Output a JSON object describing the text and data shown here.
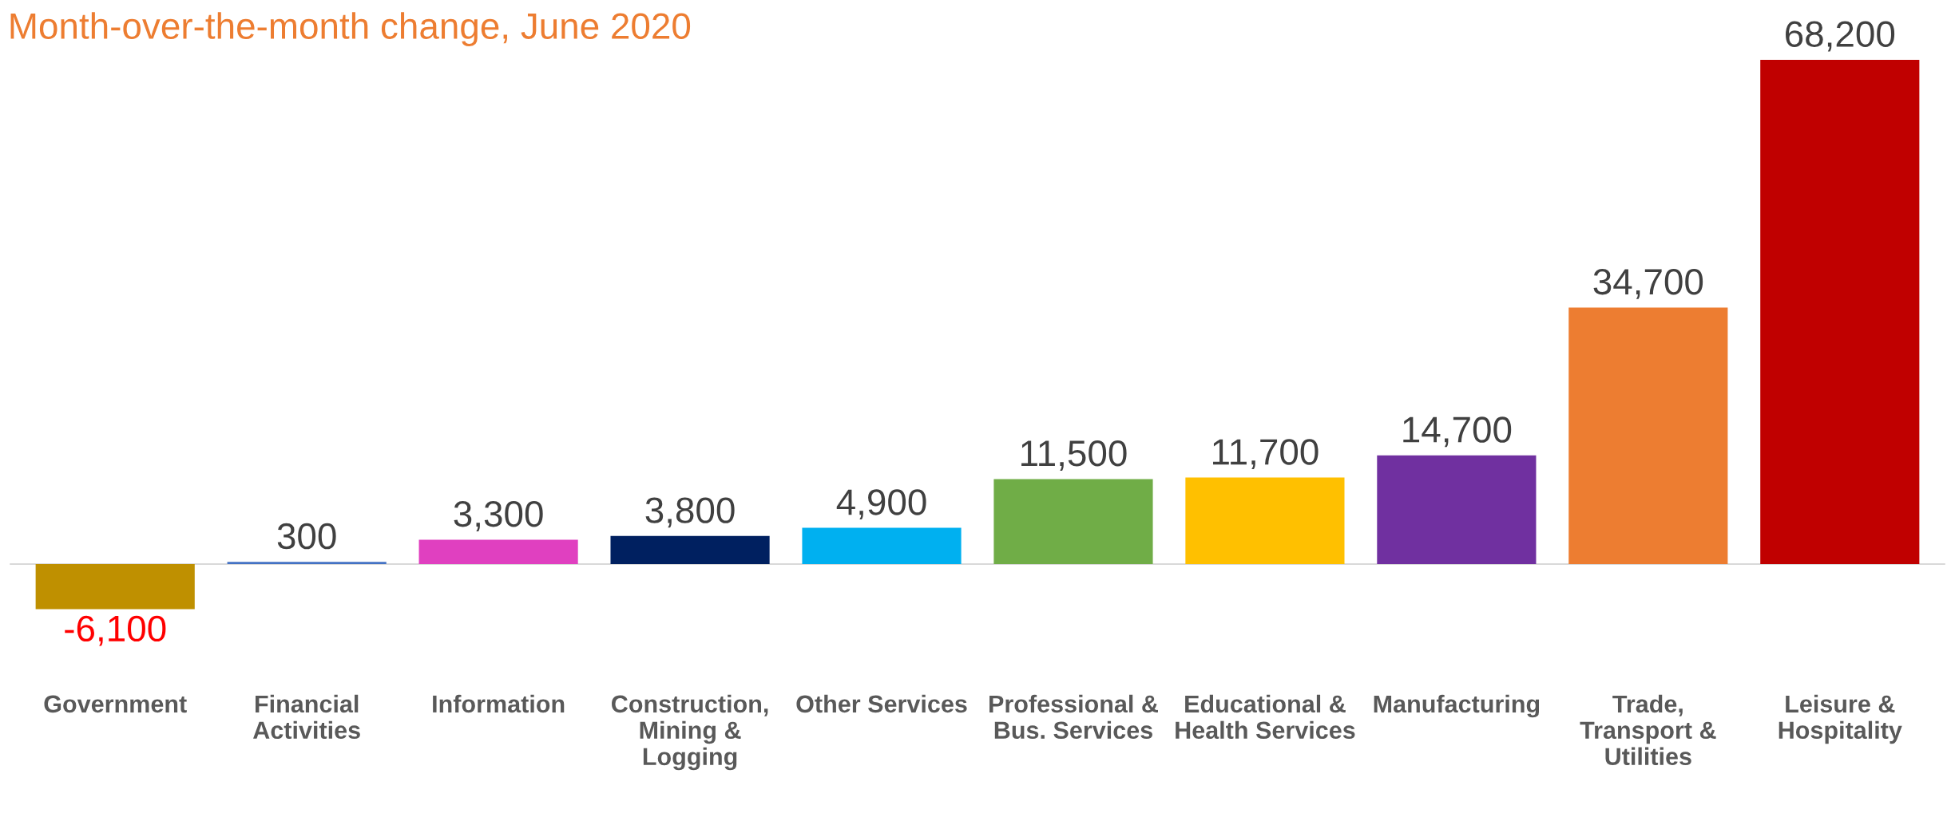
{
  "chart_data": {
    "type": "bar",
    "title": "Month-over-the-month change, June 2020",
    "categories": [
      "Government",
      "Financial\nActivities",
      "Information",
      "Construction,\nMining &\nLogging",
      "Other Services",
      "Professional &\nBus. Services",
      "Educational &\nHealth Services",
      "Manufacturing",
      "Trade,\nTransport &\nUtilities",
      "Leisure &\nHospitality"
    ],
    "values": [
      -6100,
      300,
      3300,
      3800,
      4900,
      11500,
      11700,
      14700,
      34700,
      68200
    ],
    "colors": [
      "#bf9000",
      "#4472c4",
      "#e040c0",
      "#002060",
      "#00b0f0",
      "#70ad47",
      "#ffc000",
      "#7030a0",
      "#ed7d31",
      "#c00000"
    ],
    "value_labels": [
      "-6,100",
      "300",
      "3,300",
      "3,800",
      "4,900",
      "11,500",
      "11,700",
      "14,700",
      "34,700",
      "68,200"
    ],
    "grid": false,
    "legend": false
  }
}
